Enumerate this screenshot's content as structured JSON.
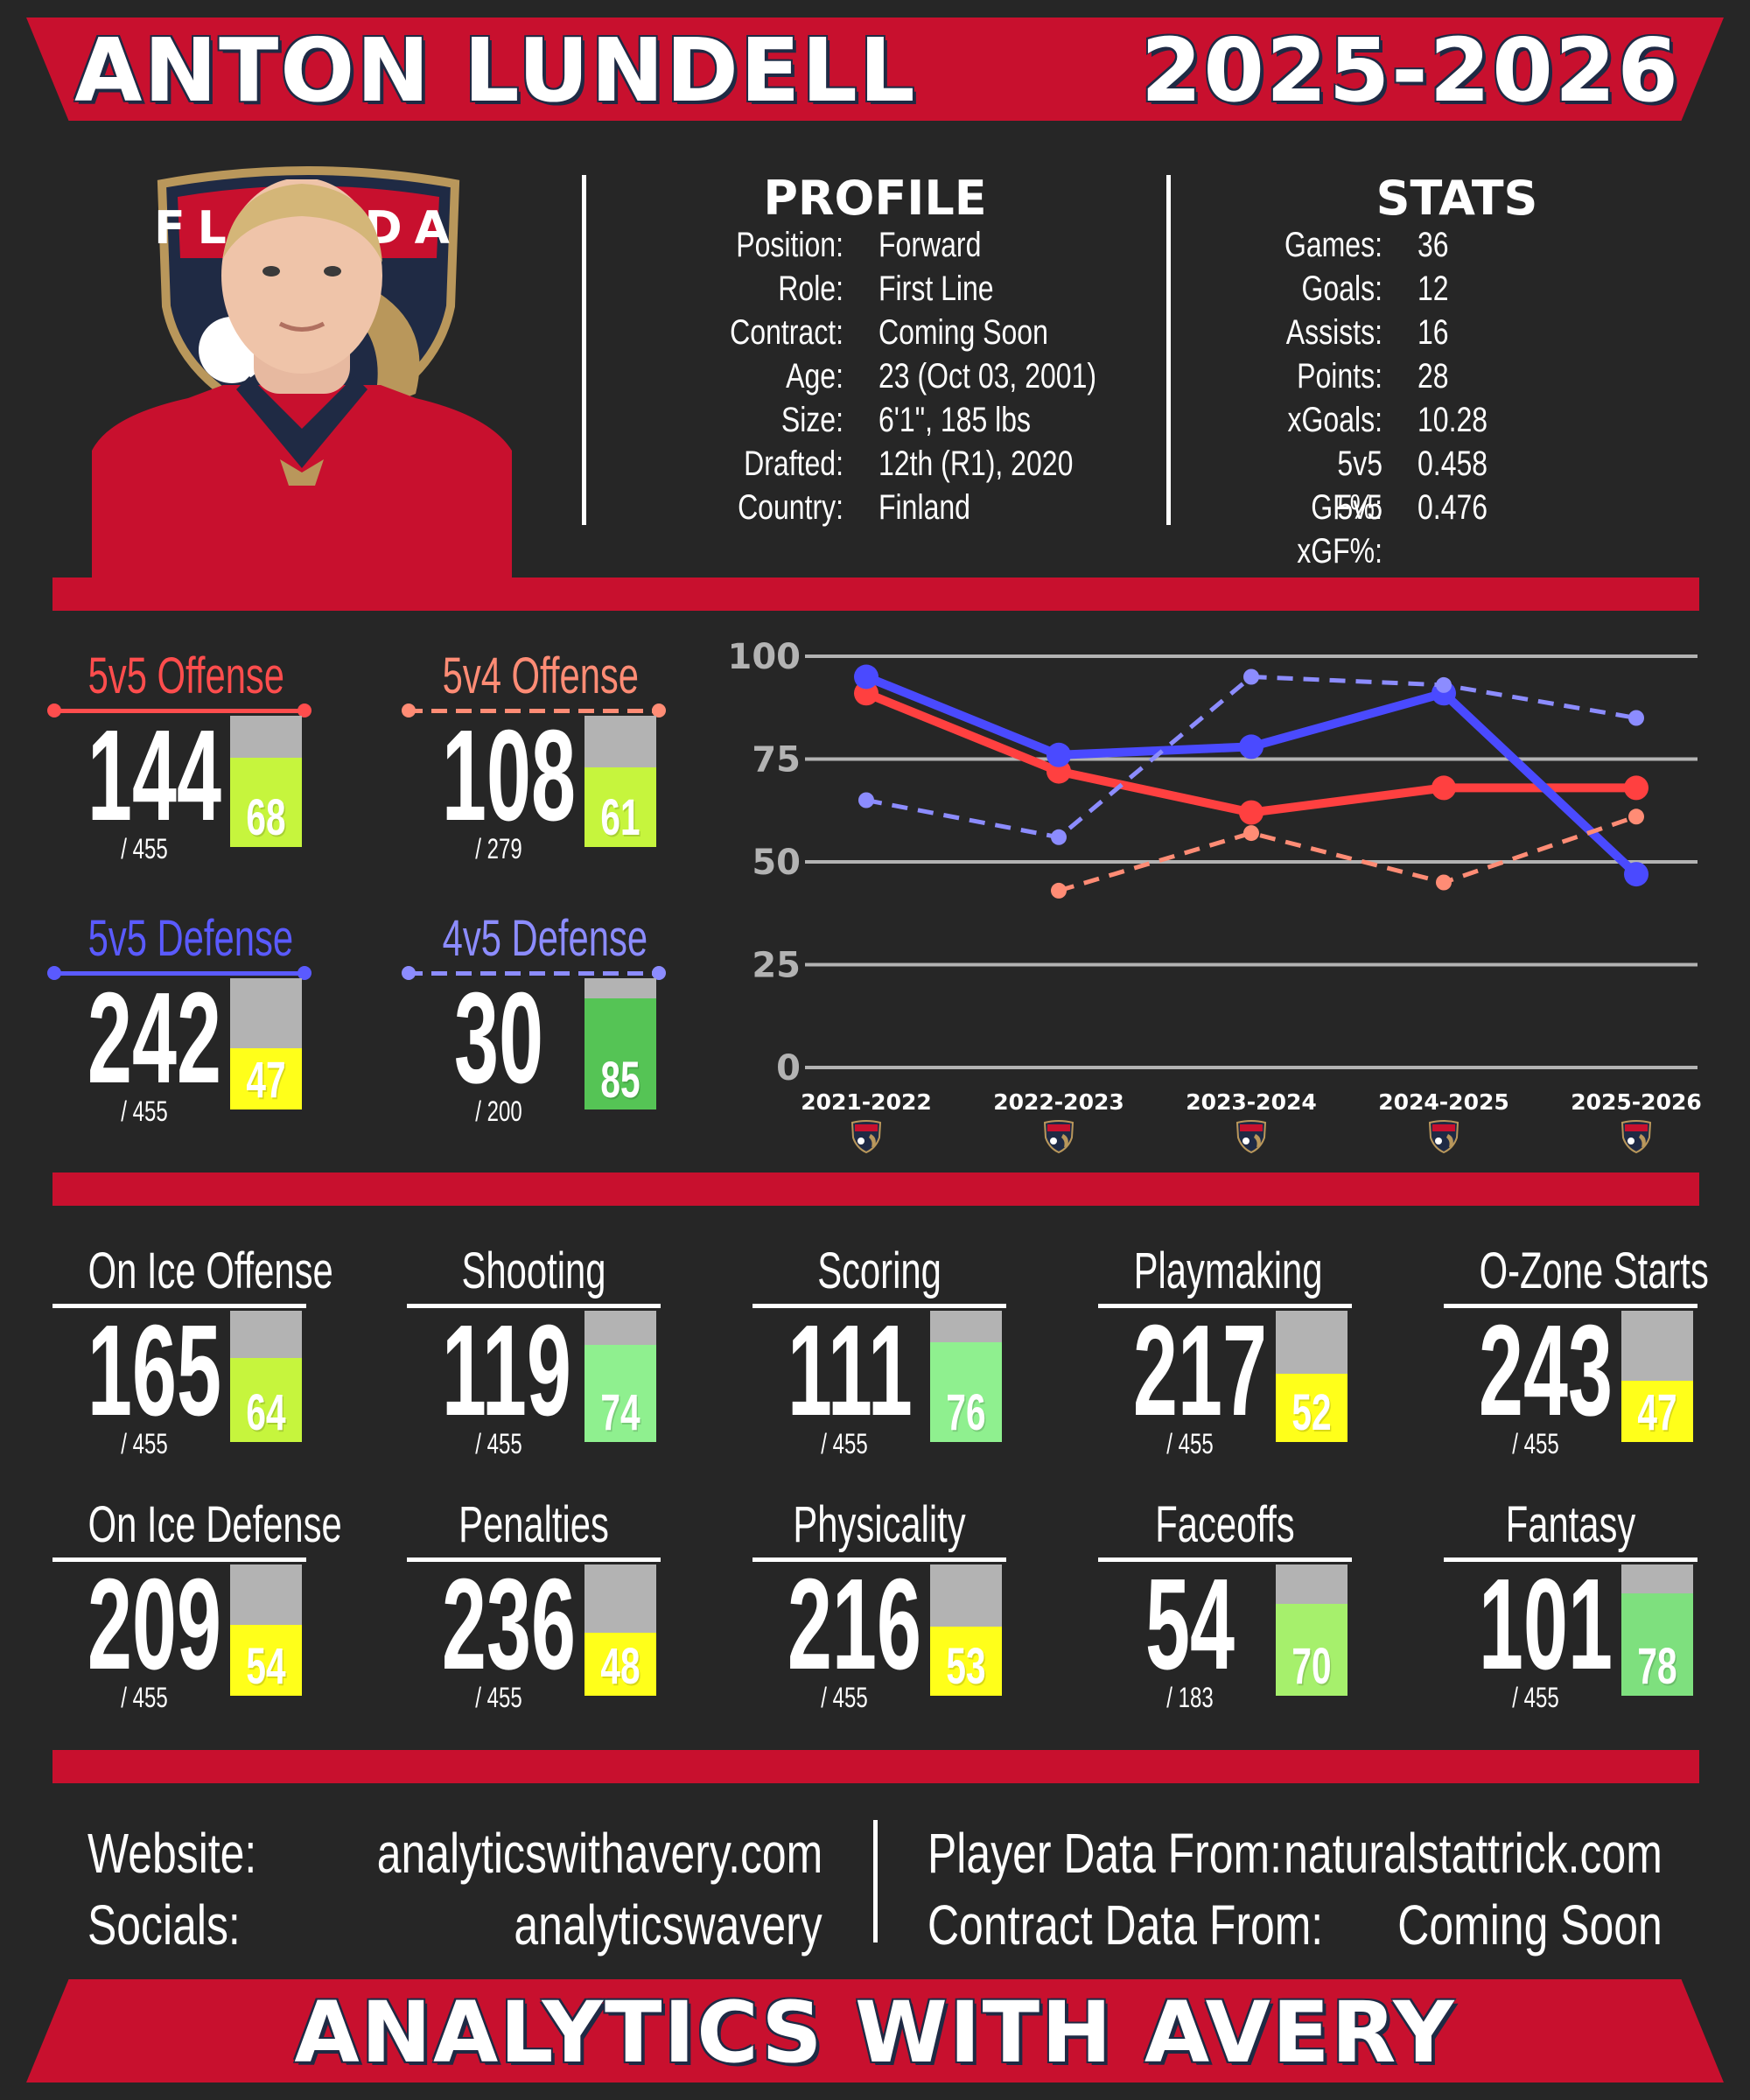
{
  "header": {
    "player_name": "ANTON LUNDELL",
    "season": "2025-2026"
  },
  "profile": {
    "title": "PROFILE",
    "rows": [
      {
        "key": "Position:",
        "value": "Forward"
      },
      {
        "key": "Role:",
        "value": "First Line"
      },
      {
        "key": "Contract:",
        "value": "Coming Soon"
      },
      {
        "key": "Age:",
        "value": "23 (Oct 03, 2001)"
      },
      {
        "key": "Size:",
        "value": "6'1\", 185 lbs"
      },
      {
        "key": "Drafted:",
        "value": "12th (R1), 2020"
      },
      {
        "key": "Country:",
        "value": "Finland"
      }
    ]
  },
  "stats": {
    "title": "STATS",
    "rows": [
      {
        "key": "Games:",
        "value": "36"
      },
      {
        "key": "Goals:",
        "value": "12"
      },
      {
        "key": "Assists:",
        "value": "16"
      },
      {
        "key": "Points:",
        "value": "28"
      },
      {
        "key": "xGoals:",
        "value": "10.28"
      },
      {
        "key": "5v5 GF%:",
        "value": "0.458"
      },
      {
        "key": "5v5 xGF%:",
        "value": "0.476"
      }
    ]
  },
  "team_logo": {
    "text": "FLORIDA",
    "icon": "panthers-logo"
  },
  "special_cards": [
    {
      "label": "5v5 Offense",
      "rank": "144",
      "total": "/ 455",
      "pct": 68,
      "pct_label": "68",
      "label_color": "#ff4d4d",
      "fill": "#c6f53d",
      "line_style": "solid"
    },
    {
      "label": "5v4 Offense",
      "rank": "108",
      "total": "/ 279",
      "pct": 61,
      "pct_label": "61",
      "label_color": "#ff8c75",
      "fill": "#c6f53d",
      "line_style": "dashed"
    },
    {
      "label": "5v5 Defense",
      "rank": "242",
      "total": "/ 455",
      "pct": 47,
      "pct_label": "47",
      "label_color": "#5a5aff",
      "fill": "#ffff1a",
      "line_style": "solid"
    },
    {
      "label": "4v5 Defense",
      "rank": "30",
      "total": "/ 200",
      "pct": 85,
      "pct_label": "85",
      "label_color": "#8c8cff",
      "fill": "#55c455",
      "line_style": "dashed"
    }
  ],
  "chart_data": {
    "type": "line",
    "categories": [
      "2021-2022",
      "2022-2023",
      "2023-2024",
      "2024-2025",
      "2025-2026"
    ],
    "ylim": [
      0,
      100
    ],
    "yticks": [
      "0",
      "25",
      "50",
      "75",
      "100"
    ],
    "grid": true,
    "series": [
      {
        "values": [
          91,
          72,
          62,
          68,
          68
        ],
        "color": "#ff4040",
        "style": "solid"
      },
      {
        "values": [
          95,
          76,
          78,
          91,
          47
        ],
        "color": "#4a4aff",
        "style": "solid"
      },
      {
        "values": [
          null,
          43,
          57,
          45,
          61
        ],
        "color": "#ff8c75",
        "style": "dashed"
      },
      {
        "values": [
          65,
          56,
          95,
          93,
          85
        ],
        "color": "#8c8cff",
        "style": "dashed"
      }
    ]
  },
  "metric_cards": [
    {
      "label": "On Ice Offense",
      "rank": "165",
      "total": "/ 455",
      "pct": 64,
      "pct_label": "64",
      "fill": "#c6f53d"
    },
    {
      "label": "Shooting",
      "rank": "119",
      "total": "/ 455",
      "pct": 74,
      "pct_label": "74",
      "fill": "#8ff08f"
    },
    {
      "label": "Scoring",
      "rank": "111",
      "total": "/ 455",
      "pct": 76,
      "pct_label": "76",
      "fill": "#8ff08f"
    },
    {
      "label": "Playmaking",
      "rank": "217",
      "total": "/ 455",
      "pct": 52,
      "pct_label": "52",
      "fill": "#ffff1a"
    },
    {
      "label": "O-Zone Starts",
      "rank": "243",
      "total": "/ 455",
      "pct": 47,
      "pct_label": "47",
      "fill": "#ffff1a"
    },
    {
      "label": "On Ice Defense",
      "rank": "209",
      "total": "/ 455",
      "pct": 54,
      "pct_label": "54",
      "fill": "#ffff1a"
    },
    {
      "label": "Penalties",
      "rank": "236",
      "total": "/ 455",
      "pct": 48,
      "pct_label": "48",
      "fill": "#ffff1a"
    },
    {
      "label": "Physicality",
      "rank": "216",
      "total": "/ 455",
      "pct": 53,
      "pct_label": "53",
      "fill": "#ffff1a"
    },
    {
      "label": "Faceoffs",
      "rank": "54",
      "total": "/ 183",
      "pct": 70,
      "pct_label": "70",
      "fill": "#a6f06c"
    },
    {
      "label": "Fantasy",
      "rank": "101",
      "total": "/ 455",
      "pct": 78,
      "pct_label": "78",
      "fill": "#7ee07e"
    }
  ],
  "footer": {
    "website_label": "Website:",
    "website_value": "analyticswithavery.com",
    "socials_label": "Socials:",
    "socials_value": "analyticswavery",
    "player_data_label": "Player Data From:",
    "player_data_value": "naturalstattrick.com",
    "contract_data_label": "Contract Data From:",
    "contract_data_value": "Coming Soon",
    "brand": "ANALYTICS WITH AVERY"
  },
  "colors": {
    "red": "#c8102e",
    "background": "#262626",
    "navy": "#1f2a44",
    "gold": "#b9975b"
  }
}
